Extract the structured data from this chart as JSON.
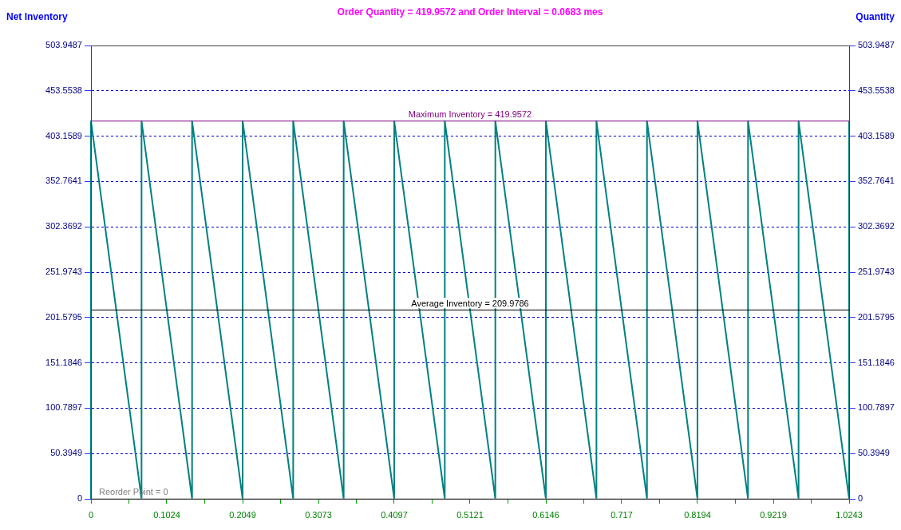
{
  "chart_data": {
    "type": "line",
    "title": "Order Quantity = 419.9572 and Order Interval = 0.0683 mes",
    "ylabel": "Net Inventory",
    "y2label": "Quantity",
    "series": [
      {
        "color": "#008080",
        "x": [
          0,
          0,
          0.0683,
          0.0683,
          0.1366,
          0.1366,
          0.2049,
          0.2049,
          0.2732,
          0.2732,
          0.3414,
          0.3414,
          0.4097,
          0.4097,
          0.478,
          0.478,
          0.5463,
          0.5463,
          0.6146,
          0.6146,
          0.6829,
          0.6829,
          0.7512,
          0.7512,
          0.8194,
          0.8194,
          0.8877,
          0.8877,
          0.956,
          0.956,
          1.0243,
          1.0243
        ],
        "values": [
          0,
          419.9572,
          0,
          419.9572,
          0,
          419.9572,
          0,
          419.9572,
          0,
          419.9572,
          0,
          419.9572,
          0,
          419.9572,
          0,
          419.9572,
          0,
          419.9572,
          0,
          419.9572,
          0,
          419.9572,
          0,
          419.9572,
          0,
          419.9572,
          0,
          419.9572,
          0,
          419.9572,
          0,
          419.9572
        ]
      }
    ],
    "xlim": [
      0,
      1.0243
    ],
    "xticks": [
      0,
      {
        "value": 0.0512,
        "label": null
      },
      0.1024,
      {
        "value": 0.1537,
        "label": null
      },
      0.2049,
      {
        "value": 0.2561,
        "label": null
      },
      0.3073,
      {
        "value": 0.3585,
        "label": null
      },
      0.4097,
      {
        "value": 0.4609,
        "label": null
      },
      0.5121,
      {
        "value": 0.5634,
        "label": null
      },
      0.6146,
      {
        "value": 0.6658,
        "label": null
      },
      0.717,
      {
        "value": 0.7682,
        "label": null
      },
      0.8194,
      {
        "value": 0.8707,
        "label": null
      },
      0.9219,
      {
        "value": 0.9731,
        "label": null
      },
      1.0243
    ],
    "ylim": [
      0,
      503.9487
    ],
    "yticks": [
      0,
      50.3949,
      100.7897,
      151.1846,
      201.5795,
      251.9743,
      302.3692,
      352.7641,
      403.1589,
      453.5538,
      503.9487
    ],
    "y2lim": [
      0,
      503.9487
    ],
    "y2ticks": [
      0,
      50.3949,
      100.7897,
      151.1846,
      201.5795,
      251.9743,
      302.3692,
      352.7641,
      403.1589,
      453.5538,
      503.9487
    ],
    "ref_lines": [
      {
        "axis": "y",
        "value": 419.9572,
        "label": "Maximum Inventory = 419.9572",
        "color": "#800080"
      },
      {
        "axis": "y",
        "value": 209.9786,
        "label": "Average Inventory = 209.9786",
        "color": "#000000"
      },
      {
        "axis": "y",
        "value": 0,
        "label": "Reorder Point = 0",
        "color": "#808080"
      }
    ],
    "grid": "y",
    "legend": false,
    "marker": "none",
    "line_style": "solid"
  }
}
